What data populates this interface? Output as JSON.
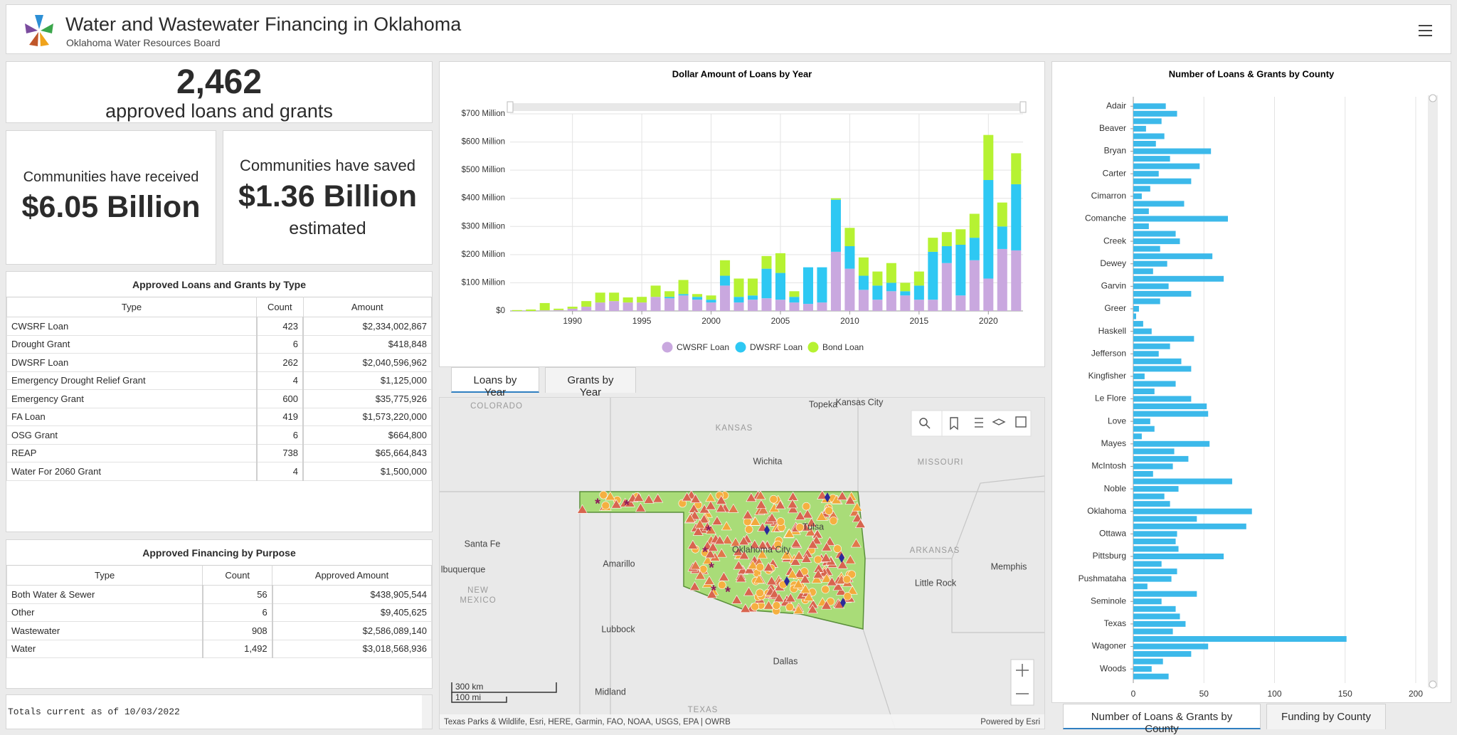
{
  "header": {
    "title": "Water and Wastewater Financing in Oklahoma",
    "subtitle": "Oklahoma Water Resources Board"
  },
  "indicators": {
    "total": {
      "value": "2,462",
      "label": "approved loans and grants"
    },
    "received": {
      "top": "Communities have received",
      "value": "$6.05 Billion"
    },
    "saved": {
      "top": "Communities have saved",
      "value": "$1.36 Billion",
      "bottom": "estimated"
    }
  },
  "tables": [
    {
      "title": "Approved Loans and Grants by Type",
      "columns": [
        "Type",
        "Count",
        "Amount"
      ],
      "rows": [
        [
          "CWSRF Loan",
          "423",
          "$2,334,002,867"
        ],
        [
          "Drought Grant",
          "6",
          "$418,848"
        ],
        [
          "DWSRF Loan",
          "262",
          "$2,040,596,962"
        ],
        [
          "Emergency Drought Relief Grant",
          "4",
          "$1,125,000"
        ],
        [
          "Emergency Grant",
          "600",
          "$35,775,926"
        ],
        [
          "FA Loan",
          "419",
          "$1,573,220,000"
        ],
        [
          "OSG Grant",
          "6",
          "$664,800"
        ],
        [
          "REAP",
          "738",
          "$65,664,843"
        ],
        [
          "Water For 2060 Grant",
          "4",
          "$1,500,000"
        ]
      ]
    },
    {
      "title": "Approved Financing by Purpose",
      "columns": [
        "Type",
        "Count",
        "Approved Amount"
      ],
      "rows": [
        [
          "Both Water & Sewer",
          "56",
          "$438,905,544"
        ],
        [
          "Other",
          "6",
          "$9,405,625"
        ],
        [
          "Wastewater",
          "908",
          "$2,586,089,140"
        ],
        [
          "Water",
          "1,492",
          "$3,018,568,936"
        ]
      ]
    }
  ],
  "footer": "Totals current as of 10/03/2022",
  "chart_data": [
    {
      "type": "bar",
      "stacked": true,
      "title": "Dollar Amount of Loans by Year",
      "x": [
        1986,
        1987,
        1988,
        1989,
        1990,
        1991,
        1992,
        1993,
        1994,
        1995,
        1996,
        1997,
        1998,
        1999,
        2000,
        2001,
        2002,
        2003,
        2004,
        2005,
        2006,
        2007,
        2008,
        2009,
        2010,
        2011,
        2012,
        2013,
        2014,
        2015,
        2016,
        2017,
        2018,
        2019,
        2020,
        2021,
        2022
      ],
      "xlim": [
        1985.5,
        2022.5
      ],
      "xticks": [
        1990,
        1995,
        2000,
        2005,
        2010,
        2015,
        2020
      ],
      "ylim": [
        0,
        700
      ],
      "yticks": [
        {
          "value": 0,
          "label": "$0"
        },
        {
          "value": 100,
          "label": "$100 Million"
        },
        {
          "value": 200,
          "label": "$200 Million"
        },
        {
          "value": 300,
          "label": "$300 Million"
        },
        {
          "value": 400,
          "label": "$400 Million"
        },
        {
          "value": 500,
          "label": "$500 Million"
        },
        {
          "value": 600,
          "label": "$600 Million"
        },
        {
          "value": 700,
          "label": "$700 Million"
        }
      ],
      "grid": true,
      "series": [
        {
          "name": "CWSRF Loan",
          "color": "#c9a8df",
          "values": [
            0,
            0,
            2,
            3,
            8,
            15,
            30,
            35,
            30,
            30,
            50,
            45,
            55,
            40,
            30,
            90,
            30,
            40,
            45,
            40,
            30,
            25,
            30,
            210,
            150,
            75,
            40,
            70,
            55,
            40,
            40,
            170,
            55,
            180,
            115,
            220,
            215
          ]
        },
        {
          "name": "DWSRF Loan",
          "color": "#2ec8f3",
          "values": [
            0,
            0,
            0,
            0,
            0,
            0,
            0,
            0,
            0,
            0,
            0,
            5,
            5,
            10,
            10,
            35,
            20,
            15,
            105,
            95,
            20,
            130,
            125,
            185,
            80,
            50,
            50,
            30,
            15,
            50,
            170,
            60,
            180,
            80,
            350,
            80,
            235
          ]
        },
        {
          "name": "Bond Loan",
          "color": "#b6f232",
          "values": [
            3,
            5,
            26,
            5,
            7,
            20,
            35,
            30,
            18,
            20,
            40,
            20,
            50,
            10,
            15,
            55,
            65,
            60,
            45,
            70,
            20,
            0,
            0,
            5,
            65,
            65,
            50,
            70,
            30,
            50,
            50,
            50,
            55,
            85,
            160,
            85,
            110
          ]
        }
      ]
    },
    {
      "type": "barh",
      "title": "Number of Loans & Grants by County",
      "categories": [
        "Adair",
        null,
        null,
        "Beaver",
        null,
        null,
        "Bryan",
        null,
        null,
        "Carter",
        null,
        null,
        "Cimarron",
        null,
        null,
        "Comanche",
        null,
        null,
        "Creek",
        null,
        null,
        "Dewey",
        null,
        null,
        "Garvin",
        null,
        null,
        "Greer",
        null,
        null,
        "Haskell",
        null,
        null,
        "Jefferson",
        null,
        null,
        "Kingfisher",
        null,
        null,
        "Le Flore",
        null,
        null,
        "Love",
        null,
        null,
        "Mayes",
        null,
        null,
        "McIntosh",
        null,
        null,
        "Noble",
        null,
        null,
        "Oklahoma",
        null,
        null,
        "Ottawa",
        null,
        null,
        "Pittsburg",
        null,
        null,
        "Pushmataha",
        null,
        null,
        "Seminole",
        null,
        null,
        "Texas",
        null,
        null,
        "Wagoner",
        null,
        null,
        "Woods",
        null
      ],
      "values": [
        23,
        31,
        20,
        9,
        22,
        16,
        55,
        26,
        47,
        18,
        41,
        12,
        6,
        36,
        11,
        67,
        11,
        30,
        33,
        19,
        56,
        24,
        14,
        64,
        25,
        41,
        19,
        4,
        2,
        7,
        13,
        43,
        26,
        18,
        34,
        41,
        8,
        30,
        15,
        41,
        52,
        53,
        12,
        15,
        6,
        54,
        29,
        39,
        28,
        14,
        70,
        32,
        22,
        26,
        84,
        45,
        80,
        31,
        30,
        32,
        64,
        20,
        31,
        27,
        10,
        45,
        20,
        30,
        33,
        37,
        28,
        151,
        53,
        41,
        21,
        13,
        25
      ],
      "color": "#3cb9ea",
      "xlim": [
        0,
        200
      ],
      "xticks": [
        0,
        50,
        100,
        150,
        200
      ],
      "grid": true
    }
  ],
  "tabs": {
    "middle": [
      "Loans by Year",
      "Grants by Year"
    ],
    "right": [
      "Number of Loans & Grants by County",
      "Funding by County"
    ]
  },
  "map": {
    "labels": [
      "COLORADO",
      "KANSAS",
      "Topeka",
      "Kansas City",
      "MISSOURI",
      "Wichita",
      "Santa Fe",
      "lbuquerque",
      "Amarillo",
      "ARKANSAS",
      "Memphis",
      "Little Rock",
      "NEW",
      "MEXICO",
      "Lubbock",
      "Dallas",
      "Midland",
      "TEXAS",
      "Tulsa",
      "Oklahoma City"
    ],
    "scale": [
      "300 km",
      "100 mi"
    ],
    "attribution": "Texas Parks & Wildlife, Esri, HERE, Garmin, FAO, NOAA, USGS, EPA | OWRB",
    "powered": "Powered by Esri"
  }
}
